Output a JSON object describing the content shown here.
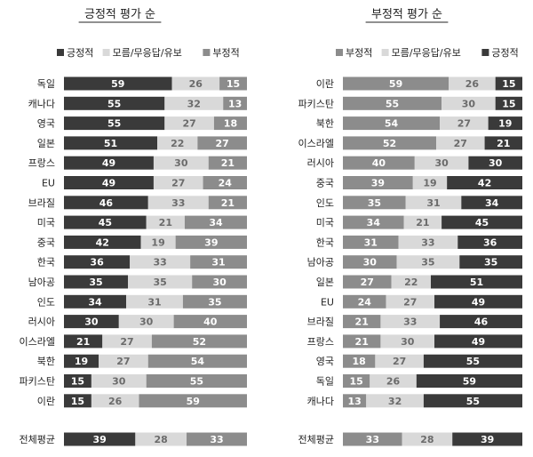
{
  "colors": {
    "positive": "#3a3a3a",
    "neutral": "#d9d9d9",
    "negative": "#8c8c8c",
    "text_on_dark": "#ffffff",
    "text_on_light": "#6b6b6b",
    "label": "#222222"
  },
  "chart_data": [
    {
      "type": "bar",
      "stacked": true,
      "orientation": "horizontal",
      "title": "긍정적 평가 순",
      "legend": [
        "긍정적",
        "모름/무응답/유보",
        "부정적"
      ],
      "categories": [
        "독일",
        "캐나다",
        "영국",
        "일본",
        "프랑스",
        "EU",
        "브라질",
        "미국",
        "중국",
        "한국",
        "남아공",
        "인도",
        "러시아",
        "이스라엘",
        "북한",
        "파키스탄",
        "이란"
      ],
      "series": [
        {
          "name": "긍정적",
          "values": [
            59,
            55,
            55,
            51,
            49,
            49,
            46,
            45,
            42,
            36,
            35,
            34,
            30,
            21,
            19,
            15,
            15
          ]
        },
        {
          "name": "모름/무응답/유보",
          "values": [
            26,
            32,
            27,
            22,
            30,
            27,
            33,
            21,
            19,
            33,
            35,
            31,
            30,
            27,
            27,
            30,
            26
          ]
        },
        {
          "name": "부정적",
          "values": [
            15,
            13,
            18,
            27,
            21,
            24,
            21,
            34,
            39,
            31,
            30,
            35,
            40,
            52,
            54,
            55,
            59
          ]
        }
      ],
      "total": {
        "label": "전체평균",
        "values": [
          39,
          28,
          33
        ]
      }
    },
    {
      "type": "bar",
      "stacked": true,
      "orientation": "horizontal",
      "title": "부정적 평가 순",
      "legend": [
        "부정적",
        "모름/무응답/유보",
        "긍정적"
      ],
      "categories": [
        "이란",
        "파키스탄",
        "북한",
        "이스라엘",
        "러시아",
        "중국",
        "인도",
        "미국",
        "한국",
        "남아공",
        "일본",
        "EU",
        "브라질",
        "프랑스",
        "영국",
        "독일",
        "캐나다"
      ],
      "series": [
        {
          "name": "부정적",
          "values": [
            59,
            55,
            54,
            52,
            40,
            39,
            35,
            34,
            31,
            30,
            27,
            24,
            21,
            21,
            18,
            15,
            13
          ]
        },
        {
          "name": "모름/무응답/유보",
          "values": [
            26,
            30,
            27,
            27,
            30,
            19,
            31,
            21,
            33,
            35,
            22,
            27,
            33,
            30,
            27,
            26,
            32
          ]
        },
        {
          "name": "긍정적",
          "values": [
            15,
            15,
            19,
            21,
            30,
            42,
            34,
            45,
            36,
            35,
            51,
            49,
            46,
            49,
            55,
            59,
            55
          ]
        }
      ],
      "total": {
        "label": "전체평균",
        "values": [
          33,
          28,
          39
        ]
      }
    }
  ]
}
